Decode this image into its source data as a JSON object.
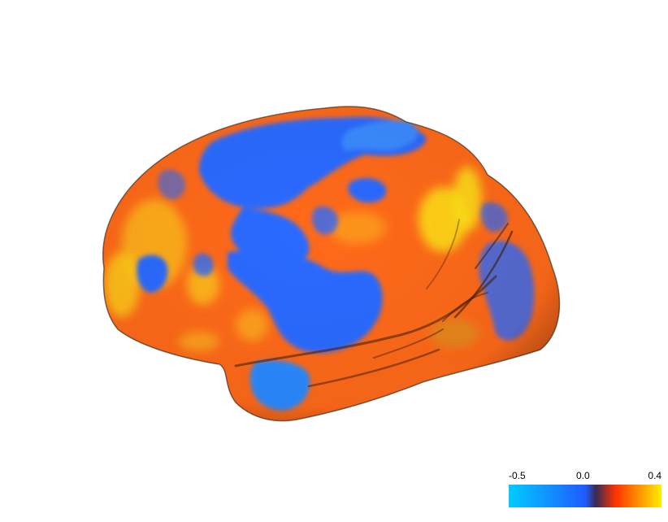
{
  "colorbar": {
    "min_label": "-0.5",
    "mid_label": "0.0",
    "max_label": "0.4",
    "range": [
      -0.5,
      0.4
    ],
    "colors": {
      "neg_light": "#00ccff",
      "neg_dark": "#1f5cff",
      "zero_dark": "#3a2a55",
      "pos_dark": "#ff3300",
      "pos_light": "#ffee00"
    }
  },
  "surface": {
    "base_color": "#ff6a1a",
    "negative_color": "#2a6aff",
    "highlight_color": "#ffd21a"
  }
}
